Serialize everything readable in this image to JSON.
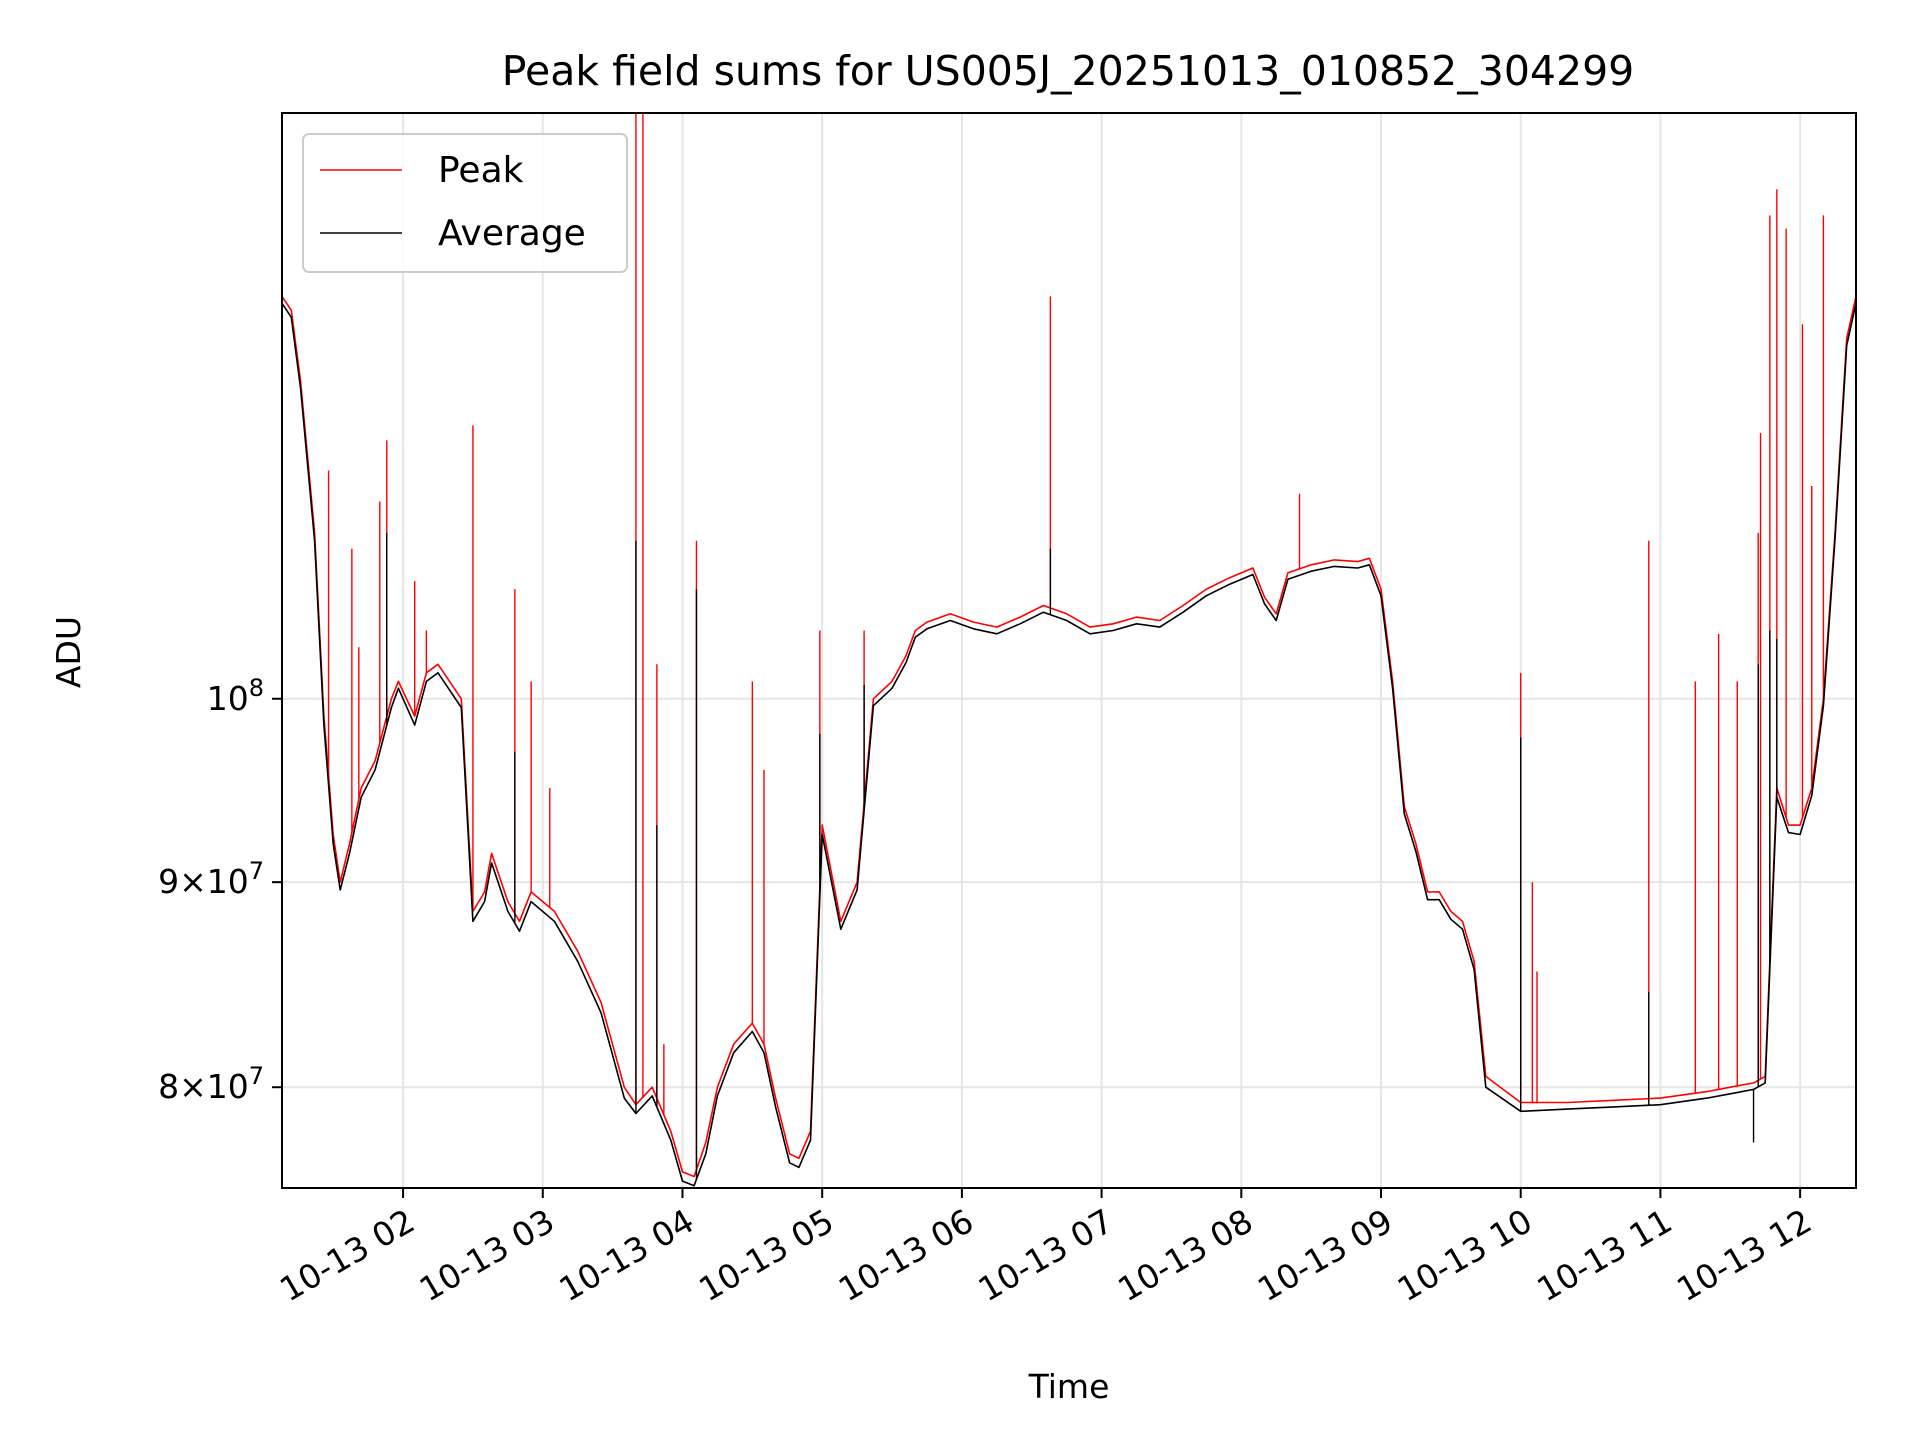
{
  "chart_data": {
    "type": "line",
    "title": "Peak field sums for US005J_20251013_010852_304299",
    "xlabel": "Time",
    "ylabel": "ADU",
    "y_scale": "log",
    "grid": true,
    "legend_position": "top-left",
    "x_tick_labels": [
      "10-13 02",
      "10-13 03",
      "10-13 04",
      "10-13 05",
      "10-13 06",
      "10-13 07",
      "10-13 08",
      "10-13 09",
      "10-13 10",
      "10-13 11",
      "10-13 12"
    ],
    "x_ticks": [
      "2025-10-13 02:00",
      "2025-10-13 03:00",
      "2025-10-13 04:00",
      "2025-10-13 05:00",
      "2025-10-13 06:00",
      "2025-10-13 07:00",
      "2025-10-13 08:00",
      "2025-10-13 09:00",
      "2025-10-13 10:00",
      "2025-10-13 11:00",
      "2025-10-13 12:00"
    ],
    "x_range": [
      "2025-10-13 01:08",
      "2025-10-13 12:24"
    ],
    "y_ticks": [
      {
        "value": 80000000,
        "mant": "8",
        "exp": "7"
      },
      {
        "value": 90000000,
        "mant": "9",
        "exp": "7"
      },
      {
        "value": 100000000,
        "mant": "",
        "exp": "8"
      }
    ],
    "ylim": [
      75500000,
      140000000
    ],
    "series": [
      {
        "name": "Peak",
        "color": "#ff0000",
        "x": [
          "2025-10-13 01:08",
          "2025-10-13 01:12",
          "2025-10-13 01:16",
          "2025-10-13 01:22",
          "2025-10-13 01:26",
          "2025-10-13 01:30",
          "2025-10-13 01:33",
          "2025-10-13 01:37",
          "2025-10-13 01:42",
          "2025-10-13 01:48",
          "2025-10-13 01:55",
          "2025-10-13 01:58",
          "2025-10-13 02:05",
          "2025-10-13 02:10",
          "2025-10-13 02:15",
          "2025-10-13 02:20",
          "2025-10-13 02:25",
          "2025-10-13 02:30",
          "2025-10-13 02:35",
          "2025-10-13 02:38",
          "2025-10-13 02:45",
          "2025-10-13 02:50",
          "2025-10-13 02:55",
          "2025-10-13 03:05",
          "2025-10-13 03:15",
          "2025-10-13 03:25",
          "2025-10-13 03:35",
          "2025-10-13 03:40",
          "2025-10-13 03:47",
          "2025-10-13 03:55",
          "2025-10-13 04:00",
          "2025-10-13 04:05",
          "2025-10-13 04:10",
          "2025-10-13 04:15",
          "2025-10-13 04:22",
          "2025-10-13 04:30",
          "2025-10-13 04:35",
          "2025-10-13 04:40",
          "2025-10-13 04:46",
          "2025-10-13 04:50",
          "2025-10-13 04:55",
          "2025-10-13 05:00",
          "2025-10-13 05:08",
          "2025-10-13 05:15",
          "2025-10-13 05:22",
          "2025-10-13 05:30",
          "2025-10-13 05:36",
          "2025-10-13 05:40",
          "2025-10-13 05:45",
          "2025-10-13 05:55",
          "2025-10-13 06:05",
          "2025-10-13 06:15",
          "2025-10-13 06:25",
          "2025-10-13 06:35",
          "2025-10-13 06:45",
          "2025-10-13 06:55",
          "2025-10-13 07:05",
          "2025-10-13 07:15",
          "2025-10-13 07:25",
          "2025-10-13 07:35",
          "2025-10-13 07:45",
          "2025-10-13 07:55",
          "2025-10-13 08:05",
          "2025-10-13 08:10",
          "2025-10-13 08:15",
          "2025-10-13 08:20",
          "2025-10-13 08:30",
          "2025-10-13 08:40",
          "2025-10-13 08:50",
          "2025-10-13 08:55",
          "2025-10-13 09:00",
          "2025-10-13 09:05",
          "2025-10-13 09:10",
          "2025-10-13 09:15",
          "2025-10-13 09:20",
          "2025-10-13 09:25",
          "2025-10-13 09:30",
          "2025-10-13 09:35",
          "2025-10-13 09:40",
          "2025-10-13 09:45",
          "2025-10-13 10:00",
          "2025-10-13 10:20",
          "2025-10-13 10:40",
          "2025-10-13 11:00",
          "2025-10-13 11:20",
          "2025-10-13 11:30",
          "2025-10-13 11:40",
          "2025-10-13 11:45",
          "2025-10-13 11:50",
          "2025-10-13 11:55",
          "2025-10-13 12:00",
          "2025-10-13 12:05",
          "2025-10-13 12:10",
          "2025-10-13 12:15",
          "2025-10-13 12:20",
          "2025-10-13 12:24"
        ],
        "y": [
          126000000,
          125000000,
          120000000,
          110000000,
          99000000,
          92500000,
          90000000,
          92000000,
          95000000,
          96500000,
          100000000,
          101000000,
          99000000,
          101500000,
          102000000,
          101000000,
          100000000,
          88500000,
          89500000,
          91500000,
          89000000,
          88000000,
          89500000,
          88500000,
          86500000,
          84000000,
          80000000,
          79200000,
          80000000,
          78000000,
          76200000,
          76000000,
          77500000,
          80000000,
          82000000,
          83000000,
          82000000,
          79500000,
          77000000,
          76800000,
          78000000,
          93000000,
          88000000,
          90000000,
          100000000,
          101000000,
          102500000,
          104000000,
          104500000,
          105000000,
          104500000,
          104200000,
          104800000,
          105500000,
          105000000,
          104200000,
          104400000,
          104800000,
          104600000,
          105500000,
          106500000,
          107200000,
          107800000,
          106000000,
          105000000,
          107500000,
          108000000,
          108300000,
          108200000,
          108400000,
          106500000,
          101000000,
          94000000,
          92000000,
          89500000,
          89500000,
          88500000,
          88000000,
          86000000,
          80500000,
          79300000,
          79300000,
          79400000,
          79500000,
          79800000,
          80000000,
          80200000,
          80500000,
          95000000,
          93000000,
          93000000,
          95000000,
          100000000,
          110000000,
          123000000,
          126000000
        ],
        "spikes": [
          {
            "x": "2025-10-13 01:28",
            "y": 114000000
          },
          {
            "x": "2025-10-13 01:38",
            "y": 109000000
          },
          {
            "x": "2025-10-13 01:41",
            "y": 103000000
          },
          {
            "x": "2025-10-13 01:50",
            "y": 112000000
          },
          {
            "x": "2025-10-13 01:53",
            "y": 116000000
          },
          {
            "x": "2025-10-13 02:05",
            "y": 107000000
          },
          {
            "x": "2025-10-13 02:10",
            "y": 104000000
          },
          {
            "x": "2025-10-13 02:30",
            "y": 117000000
          },
          {
            "x": "2025-10-13 02:48",
            "y": 106500000
          },
          {
            "x": "2025-10-13 02:55",
            "y": 101000000
          },
          {
            "x": "2025-10-13 03:03",
            "y": 95000000
          },
          {
            "x": "2025-10-13 03:40",
            "y": 142000000
          },
          {
            "x": "2025-10-13 03:43",
            "y": 141000000
          },
          {
            "x": "2025-10-13 03:49",
            "y": 102000000
          },
          {
            "x": "2025-10-13 03:52",
            "y": 82000000
          },
          {
            "x": "2025-10-13 04:06",
            "y": 109500000
          },
          {
            "x": "2025-10-13 04:30",
            "y": 101000000
          },
          {
            "x": "2025-10-13 04:35",
            "y": 96000000
          },
          {
            "x": "2025-10-13 04:59",
            "y": 104000000
          },
          {
            "x": "2025-10-13 05:18",
            "y": 104000000
          },
          {
            "x": "2025-10-13 06:38",
            "y": 126000000
          },
          {
            "x": "2025-10-13 08:25",
            "y": 112500000
          },
          {
            "x": "2025-10-13 10:00",
            "y": 101500000
          },
          {
            "x": "2025-10-13 10:05",
            "y": 90000000
          },
          {
            "x": "2025-10-13 10:07",
            "y": 85500000
          },
          {
            "x": "2025-10-13 10:55",
            "y": 109500000
          },
          {
            "x": "2025-10-13 11:15",
            "y": 101000000
          },
          {
            "x": "2025-10-13 11:25",
            "y": 103800000
          },
          {
            "x": "2025-10-13 11:33",
            "y": 101000000
          },
          {
            "x": "2025-10-13 11:42",
            "y": 110000000
          },
          {
            "x": "2025-10-13 11:43",
            "y": 116500000
          },
          {
            "x": "2025-10-13 11:47",
            "y": 132000000
          },
          {
            "x": "2025-10-13 11:50",
            "y": 134000000
          },
          {
            "x": "2025-10-13 11:54",
            "y": 131000000
          },
          {
            "x": "2025-10-13 12:01",
            "y": 124000000
          },
          {
            "x": "2025-10-13 12:05",
            "y": 113000000
          },
          {
            "x": "2025-10-13 12:10",
            "y": 132000000
          }
        ]
      },
      {
        "name": "Average",
        "color": "#000000",
        "x": [
          "2025-10-13 01:08",
          "2025-10-13 01:12",
          "2025-10-13 01:16",
          "2025-10-13 01:22",
          "2025-10-13 01:26",
          "2025-10-13 01:30",
          "2025-10-13 01:33",
          "2025-10-13 01:37",
          "2025-10-13 01:42",
          "2025-10-13 01:48",
          "2025-10-13 01:55",
          "2025-10-13 01:58",
          "2025-10-13 02:05",
          "2025-10-13 02:10",
          "2025-10-13 02:15",
          "2025-10-13 02:20",
          "2025-10-13 02:25",
          "2025-10-13 02:30",
          "2025-10-13 02:35",
          "2025-10-13 02:38",
          "2025-10-13 02:45",
          "2025-10-13 02:50",
          "2025-10-13 02:55",
          "2025-10-13 03:05",
          "2025-10-13 03:15",
          "2025-10-13 03:25",
          "2025-10-13 03:35",
          "2025-10-13 03:40",
          "2025-10-13 03:47",
          "2025-10-13 03:55",
          "2025-10-13 04:00",
          "2025-10-13 04:05",
          "2025-10-13 04:10",
          "2025-10-13 04:15",
          "2025-10-13 04:22",
          "2025-10-13 04:30",
          "2025-10-13 04:35",
          "2025-10-13 04:40",
          "2025-10-13 04:46",
          "2025-10-13 04:50",
          "2025-10-13 04:55",
          "2025-10-13 05:00",
          "2025-10-13 05:08",
          "2025-10-13 05:15",
          "2025-10-13 05:22",
          "2025-10-13 05:30",
          "2025-10-13 05:36",
          "2025-10-13 05:40",
          "2025-10-13 05:45",
          "2025-10-13 05:55",
          "2025-10-13 06:05",
          "2025-10-13 06:15",
          "2025-10-13 06:25",
          "2025-10-13 06:35",
          "2025-10-13 06:45",
          "2025-10-13 06:55",
          "2025-10-13 07:05",
          "2025-10-13 07:15",
          "2025-10-13 07:25",
          "2025-10-13 07:35",
          "2025-10-13 07:45",
          "2025-10-13 07:55",
          "2025-10-13 08:05",
          "2025-10-13 08:10",
          "2025-10-13 08:15",
          "2025-10-13 08:20",
          "2025-10-13 08:30",
          "2025-10-13 08:40",
          "2025-10-13 08:50",
          "2025-10-13 08:55",
          "2025-10-13 09:00",
          "2025-10-13 09:05",
          "2025-10-13 09:10",
          "2025-10-13 09:15",
          "2025-10-13 09:20",
          "2025-10-13 09:25",
          "2025-10-13 09:30",
          "2025-10-13 09:35",
          "2025-10-13 09:40",
          "2025-10-13 09:45",
          "2025-10-13 10:00",
          "2025-10-13 10:20",
          "2025-10-13 10:40",
          "2025-10-13 11:00",
          "2025-10-13 11:20",
          "2025-10-13 11:30",
          "2025-10-13 11:40",
          "2025-10-13 11:45",
          "2025-10-13 11:50",
          "2025-10-13 11:55",
          "2025-10-13 12:00",
          "2025-10-13 12:05",
          "2025-10-13 12:10",
          "2025-10-13 12:15",
          "2025-10-13 12:20",
          "2025-10-13 12:24"
        ],
        "y": [
          125500000,
          124500000,
          119500000,
          109500000,
          98500000,
          92000000,
          89600000,
          91500000,
          94500000,
          96000000,
          99500000,
          100600000,
          98500000,
          101000000,
          101500000,
          100500000,
          99500000,
          88000000,
          89000000,
          91000000,
          88500000,
          87500000,
          89000000,
          88000000,
          86000000,
          83500000,
          79500000,
          78800000,
          79600000,
          77600000,
          75800000,
          75600000,
          77000000,
          79600000,
          81600000,
          82600000,
          81600000,
          79100000,
          76600000,
          76400000,
          77600000,
          92500000,
          87600000,
          89600000,
          99600000,
          100600000,
          102100000,
          103600000,
          104100000,
          104600000,
          104100000,
          103800000,
          104400000,
          105100000,
          104600000,
          103800000,
          104000000,
          104400000,
          104200000,
          105100000,
          106100000,
          106800000,
          107400000,
          105600000,
          104600000,
          107100000,
          107600000,
          107900000,
          107800000,
          108000000,
          106100000,
          100600000,
          93600000,
          91600000,
          89100000,
          89100000,
          88100000,
          87600000,
          85600000,
          80000000,
          78900000,
          79000000,
          79100000,
          79200000,
          79500000,
          79700000,
          79900000,
          80200000,
          94500000,
          92600000,
          92500000,
          94600000,
          99600000,
          109600000,
          122500000,
          125500000
        ],
        "spikes": [
          {
            "x": "2025-10-13 01:53",
            "y": 110000000
          },
          {
            "x": "2025-10-13 02:48",
            "y": 97000000
          },
          {
            "x": "2025-10-13 03:40",
            "y": 109500000
          },
          {
            "x": "2025-10-13 03:49",
            "y": 93000000
          },
          {
            "x": "2025-10-13 04:06",
            "y": 106500000
          },
          {
            "x": "2025-10-13 04:59",
            "y": 98000000
          },
          {
            "x": "2025-10-13 05:18",
            "y": 100800000
          },
          {
            "x": "2025-10-13 06:38",
            "y": 109000000
          },
          {
            "x": "2025-10-13 10:00",
            "y": 97800000
          },
          {
            "x": "2025-10-13 10:55",
            "y": 84500000
          },
          {
            "x": "2025-10-13 11:42",
            "y": 102000000
          },
          {
            "x": "2025-10-13 11:47",
            "y": 104000000
          },
          {
            "x": "2025-10-13 11:50",
            "y": 103500000
          },
          {
            "x": "2025-10-13 11:40",
            "y": 77500000
          }
        ]
      }
    ]
  }
}
